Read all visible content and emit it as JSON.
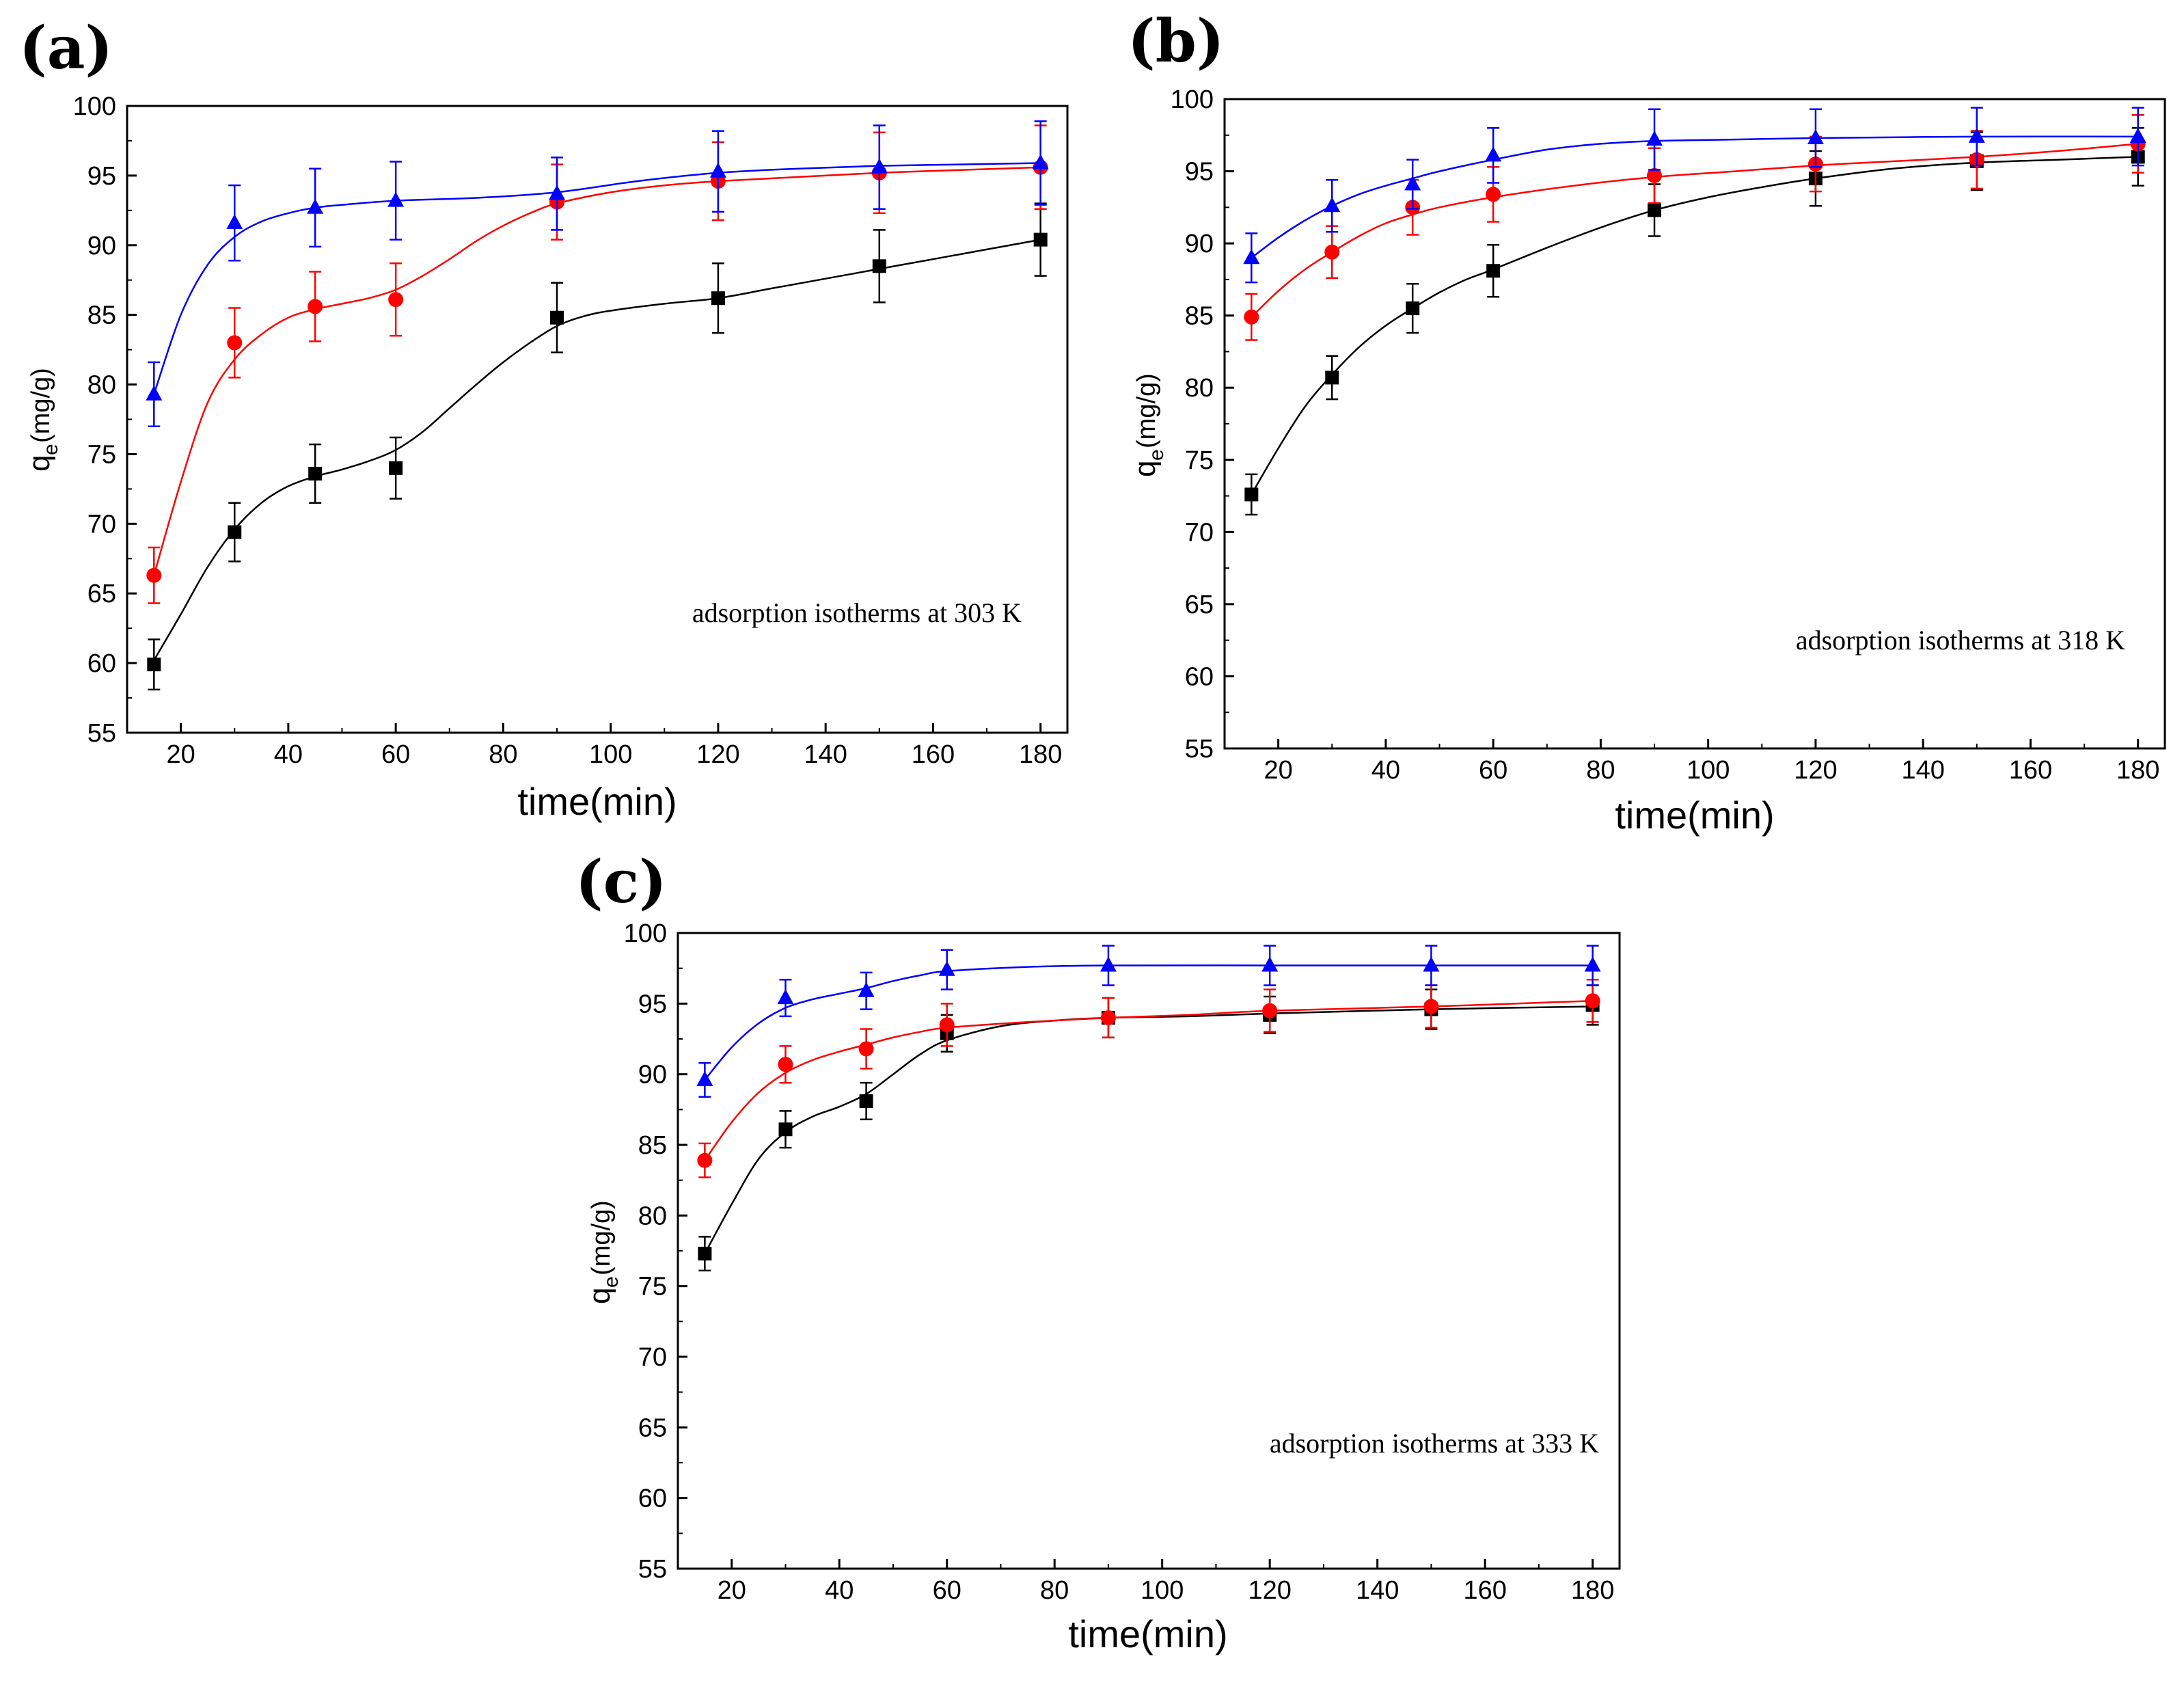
{
  "chart_data": [
    {
      "type": "line",
      "panel_label": "(a)",
      "annotation": "adsorption isotherms at 303 K",
      "xlabel": "time(min)",
      "ylabel": {
        "main": "q",
        "sub": "e",
        "unit": "(mg/g)"
      },
      "xlim": [
        10,
        185
      ],
      "ylim": [
        55,
        100
      ],
      "xticks": [
        20,
        40,
        60,
        80,
        100,
        120,
        140,
        160,
        180
      ],
      "yticks": [
        55,
        60,
        65,
        70,
        75,
        80,
        85,
        90,
        95,
        100
      ],
      "x": [
        15,
        30,
        45,
        60,
        90,
        120,
        150,
        180
      ],
      "series": [
        {
          "name": "black",
          "color": "#000000",
          "marker": "square",
          "values": [
            59.9,
            69.4,
            73.6,
            74.0,
            84.8,
            86.2,
            88.5,
            90.4
          ],
          "errors": [
            1.8,
            2.1,
            2.1,
            2.2,
            2.5,
            2.5,
            2.6,
            2.6
          ],
          "fit": [
            [
              15,
              60.2
            ],
            [
              20,
              63.5
            ],
            [
              25,
              66.9
            ],
            [
              30,
              69.6
            ],
            [
              35,
              71.5
            ],
            [
              40,
              72.7
            ],
            [
              45,
              73.4
            ],
            [
              50,
              73.9
            ],
            [
              55,
              74.5
            ],
            [
              60,
              75.3
            ],
            [
              65,
              76.6
            ],
            [
              70,
              78.3
            ],
            [
              75,
              80.0
            ],
            [
              80,
              81.6
            ],
            [
              85,
              83.0
            ],
            [
              90,
              84.2
            ],
            [
              95,
              84.9
            ],
            [
              100,
              85.3
            ],
            [
              110,
              85.8
            ],
            [
              120,
              86.2
            ],
            [
              130,
              86.9
            ],
            [
              140,
              87.6
            ],
            [
              150,
              88.3
            ],
            [
              160,
              89.0
            ],
            [
              170,
              89.7
            ],
            [
              180,
              90.4
            ]
          ]
        },
        {
          "name": "red",
          "color": "#ff0000",
          "marker": "circle",
          "values": [
            66.3,
            83.0,
            85.6,
            86.1,
            93.1,
            94.6,
            95.2,
            95.6
          ],
          "errors": [
            2.0,
            2.5,
            2.5,
            2.6,
            2.7,
            2.8,
            2.9,
            3.0
          ],
          "fit": [
            [
              15,
              66.3
            ],
            [
              20,
              73.0
            ],
            [
              25,
              78.7
            ],
            [
              30,
              81.8
            ],
            [
              35,
              83.6
            ],
            [
              40,
              84.8
            ],
            [
              45,
              85.4
            ],
            [
              50,
              85.8
            ],
            [
              55,
              86.2
            ],
            [
              60,
              86.8
            ],
            [
              65,
              87.8
            ],
            [
              70,
              89.0
            ],
            [
              75,
              90.3
            ],
            [
              80,
              91.4
            ],
            [
              85,
              92.3
            ],
            [
              90,
              93.0
            ],
            [
              100,
              93.8
            ],
            [
              110,
              94.3
            ],
            [
              120,
              94.6
            ],
            [
              135,
              94.9
            ],
            [
              150,
              95.2
            ],
            [
              165,
              95.4
            ],
            [
              180,
              95.6
            ]
          ]
        },
        {
          "name": "blue",
          "color": "#0000ff",
          "marker": "triangle",
          "values": [
            79.3,
            91.6,
            92.7,
            93.2,
            93.7,
            95.3,
            95.6,
            95.9
          ],
          "errors": [
            2.3,
            2.7,
            2.8,
            2.8,
            2.6,
            2.9,
            3.0,
            3.0
          ],
          "fit": [
            [
              15,
              79.3
            ],
            [
              20,
              85.0
            ],
            [
              25,
              88.6
            ],
            [
              30,
              90.6
            ],
            [
              35,
              91.7
            ],
            [
              40,
              92.3
            ],
            [
              45,
              92.7
            ],
            [
              50,
              92.9
            ],
            [
              60,
              93.2
            ],
            [
              75,
              93.4
            ],
            [
              90,
              93.8
            ],
            [
              105,
              94.6
            ],
            [
              120,
              95.2
            ],
            [
              135,
              95.5
            ],
            [
              150,
              95.7
            ],
            [
              165,
              95.8
            ],
            [
              180,
              95.9
            ]
          ]
        }
      ]
    },
    {
      "type": "line",
      "panel_label": "(b)",
      "annotation": "adsorption isotherms at 318 K",
      "xlabel": "time(min)",
      "ylabel": {
        "main": "q",
        "sub": "e",
        "unit": "(mg/g)"
      },
      "xlim": [
        10,
        185
      ],
      "ylim": [
        55,
        100
      ],
      "xticks": [
        20,
        40,
        60,
        80,
        100,
        120,
        140,
        160,
        180
      ],
      "yticks": [
        55,
        60,
        65,
        70,
        75,
        80,
        85,
        90,
        95,
        100
      ],
      "x": [
        15,
        30,
        45,
        60,
        90,
        120,
        150,
        180
      ],
      "series": [
        {
          "name": "black",
          "color": "#000000",
          "marker": "square",
          "values": [
            72.6,
            80.7,
            85.5,
            88.1,
            92.3,
            94.5,
            95.7,
            96.0
          ],
          "errors": [
            1.4,
            1.5,
            1.7,
            1.8,
            1.8,
            1.9,
            2.0,
            2.0
          ],
          "fit": [
            [
              15,
              72.6
            ],
            [
              20,
              75.8
            ],
            [
              25,
              78.7
            ],
            [
              30,
              80.9
            ],
            [
              35,
              82.8
            ],
            [
              40,
              84.3
            ],
            [
              45,
              85.5
            ],
            [
              50,
              86.6
            ],
            [
              55,
              87.5
            ],
            [
              60,
              88.2
            ],
            [
              70,
              89.7
            ],
            [
              80,
              91.1
            ],
            [
              90,
              92.3
            ],
            [
              100,
              93.2
            ],
            [
              110,
              93.9
            ],
            [
              120,
              94.5
            ],
            [
              135,
              95.2
            ],
            [
              150,
              95.6
            ],
            [
              165,
              95.8
            ],
            [
              180,
              96.0
            ]
          ]
        },
        {
          "name": "red",
          "color": "#ff0000",
          "marker": "circle",
          "values": [
            84.9,
            89.4,
            92.5,
            93.4,
            94.7,
            95.5,
            95.8,
            96.9
          ],
          "errors": [
            1.6,
            1.8,
            1.9,
            1.9,
            1.9,
            1.9,
            2.0,
            2.0
          ],
          "fit": [
            [
              15,
              84.9
            ],
            [
              20,
              86.7
            ],
            [
              25,
              88.2
            ],
            [
              30,
              89.4
            ],
            [
              35,
              90.5
            ],
            [
              40,
              91.4
            ],
            [
              45,
              92.0
            ],
            [
              50,
              92.5
            ],
            [
              60,
              93.2
            ],
            [
              75,
              94.0
            ],
            [
              90,
              94.6
            ],
            [
              105,
              95.0
            ],
            [
              120,
              95.4
            ],
            [
              135,
              95.7
            ],
            [
              150,
              96.0
            ],
            [
              165,
              96.4
            ],
            [
              180,
              96.9
            ]
          ]
        },
        {
          "name": "blue",
          "color": "#0000ff",
          "marker": "triangle",
          "values": [
            89.0,
            92.6,
            94.1,
            96.1,
            97.2,
            97.3,
            97.4,
            97.4
          ],
          "errors": [
            1.7,
            1.8,
            1.7,
            1.9,
            2.1,
            2.0,
            2.0,
            2.0
          ],
          "fit": [
            [
              15,
              89.0
            ],
            [
              20,
              90.4
            ],
            [
              25,
              91.6
            ],
            [
              30,
              92.6
            ],
            [
              35,
              93.4
            ],
            [
              40,
              94.0
            ],
            [
              45,
              94.5
            ],
            [
              50,
              95.0
            ],
            [
              60,
              95.8
            ],
            [
              70,
              96.5
            ],
            [
              80,
              96.9
            ],
            [
              90,
              97.1
            ],
            [
              105,
              97.2
            ],
            [
              120,
              97.3
            ],
            [
              150,
              97.4
            ],
            [
              180,
              97.4
            ]
          ]
        }
      ]
    },
    {
      "type": "line",
      "panel_label": "(c)",
      "annotation": "adsorption isotherms at 333 K",
      "xlabel": "time(min)",
      "ylabel": {
        "main": "q",
        "sub": "e",
        "unit": "(mg/g)"
      },
      "xlim": [
        10,
        185
      ],
      "ylim": [
        55,
        100
      ],
      "xticks": [
        20,
        40,
        60,
        80,
        100,
        120,
        140,
        160,
        180
      ],
      "yticks": [
        55,
        60,
        65,
        70,
        75,
        80,
        85,
        90,
        95,
        100
      ],
      "x": [
        15,
        30,
        45,
        60,
        90,
        120,
        150,
        180
      ],
      "series": [
        {
          "name": "black",
          "color": "#000000",
          "marker": "square",
          "values": [
            77.3,
            86.1,
            88.1,
            92.9,
            94.0,
            94.2,
            94.6,
            94.9
          ],
          "errors": [
            1.2,
            1.3,
            1.3,
            1.3,
            1.4,
            1.3,
            1.4,
            1.4
          ],
          "fit": [
            [
              15,
              77.3
            ],
            [
              20,
              80.8
            ],
            [
              25,
              84.0
            ],
            [
              30,
              85.9
            ],
            [
              35,
              87.0
            ],
            [
              40,
              87.7
            ],
            [
              45,
              88.6
            ],
            [
              50,
              90.0
            ],
            [
              55,
              91.4
            ],
            [
              60,
              92.4
            ],
            [
              70,
              93.4
            ],
            [
              80,
              93.8
            ],
            [
              90,
              94.0
            ],
            [
              105,
              94.1
            ],
            [
              120,
              94.3
            ],
            [
              150,
              94.6
            ],
            [
              180,
              94.8
            ]
          ]
        },
        {
          "name": "red",
          "color": "#ff0000",
          "marker": "circle",
          "values": [
            83.9,
            90.7,
            91.8,
            93.5,
            94.0,
            94.5,
            94.8,
            95.2
          ],
          "errors": [
            1.2,
            1.3,
            1.4,
            1.5,
            1.4,
            1.5,
            1.5,
            1.5
          ],
          "fit": [
            [
              15,
              83.9
            ],
            [
              20,
              86.6
            ],
            [
              25,
              88.7
            ],
            [
              30,
              90.1
            ],
            [
              35,
              91.0
            ],
            [
              40,
              91.6
            ],
            [
              45,
              92.1
            ],
            [
              50,
              92.6
            ],
            [
              55,
              93.0
            ],
            [
              60,
              93.3
            ],
            [
              75,
              93.7
            ],
            [
              90,
              94.0
            ],
            [
              105,
              94.2
            ],
            [
              120,
              94.5
            ],
            [
              150,
              94.8
            ],
            [
              180,
              95.2
            ]
          ]
        },
        {
          "name": "blue",
          "color": "#0000ff",
          "marker": "triangle",
          "values": [
            89.6,
            95.4,
            95.9,
            97.4,
            97.7,
            97.7,
            97.7,
            97.7
          ],
          "errors": [
            1.2,
            1.3,
            1.3,
            1.4,
            1.4,
            1.4,
            1.4,
            1.4
          ],
          "fit": [
            [
              15,
              89.6
            ],
            [
              20,
              91.9
            ],
            [
              25,
              93.6
            ],
            [
              30,
              94.7
            ],
            [
              35,
              95.3
            ],
            [
              40,
              95.7
            ],
            [
              45,
              96.1
            ],
            [
              50,
              96.6
            ],
            [
              55,
              97.0
            ],
            [
              60,
              97.3
            ],
            [
              75,
              97.6
            ],
            [
              90,
              97.7
            ],
            [
              120,
              97.7
            ],
            [
              150,
              97.7
            ],
            [
              180,
              97.7
            ]
          ]
        }
      ]
    }
  ]
}
